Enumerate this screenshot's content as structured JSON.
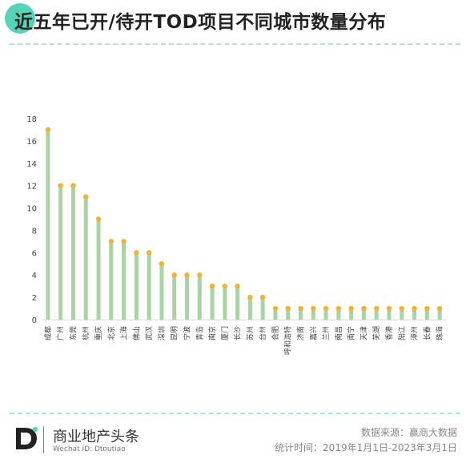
{
  "header": {
    "title": "近五年已开/待开TOD项目不同城市数量分布"
  },
  "chart_data": {
    "type": "bar",
    "categories": [
      "成都",
      "广州",
      "东莞",
      "杭州",
      "重庆",
      "北京",
      "上海",
      "佛山",
      "武汉",
      "深圳",
      "昆明",
      "宁波",
      "青岛",
      "南京",
      "厦门",
      "长沙",
      "苏州",
      "台州",
      "合肥",
      "呼和浩特",
      "济南",
      "嘉兴",
      "兰州",
      "南昌",
      "南宁",
      "天津",
      "芜湖",
      "香港",
      "阳江",
      "漳州",
      "长春",
      "珠海"
    ],
    "values": [
      17,
      12,
      12,
      11,
      9,
      7,
      7,
      6,
      6,
      5,
      4,
      4,
      4,
      3,
      3,
      3,
      2,
      2,
      1,
      1,
      1,
      1,
      1,
      1,
      1,
      1,
      1,
      1,
      1,
      1,
      1,
      1
    ],
    "ylim": [
      0,
      18
    ],
    "yticks": [
      "0",
      "2",
      "4",
      "6",
      "8",
      "10",
      "12",
      "14",
      "16",
      "18"
    ],
    "grid": false,
    "colors": {
      "bar": "#a9d3a3",
      "marker": "#f2b233",
      "axis": "#d9d9d9"
    }
  },
  "footer": {
    "brand_name": "商业地产头条",
    "wechat_id": "Wechat ID: Dtoutiao",
    "source": "数据来源：赢商大数据",
    "time_range": "统计时间：2019年1月1日-2023年3月1日",
    "logo_icon": "brand-d-logo-icon"
  }
}
